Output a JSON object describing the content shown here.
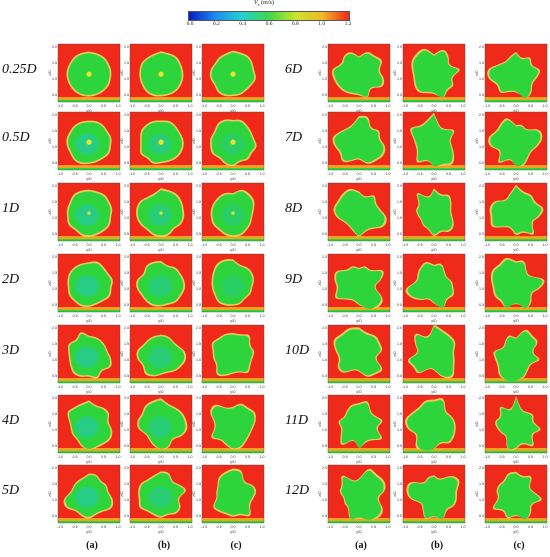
{
  "colorbar": {
    "title": "V",
    "title_sub": "x",
    "title_unit": " (m/s)",
    "ticks": [
      "0.0",
      "0.2",
      "0.4",
      "0.6",
      "0.8",
      "1.0",
      "1.2"
    ],
    "colors": [
      "#0a18c8",
      "#1c8ef0",
      "#26d0d0",
      "#3cd84a",
      "#c8e62a",
      "#f2b82a",
      "#f02818"
    ]
  },
  "rows_left": [
    "0.25D",
    "0.5D",
    "1D",
    "2D",
    "3D",
    "4D",
    "5D"
  ],
  "rows_right": [
    "6D",
    "7D",
    "8D",
    "9D",
    "10D",
    "11D",
    "12D"
  ],
  "columns": [
    "(a)",
    "(b)",
    "(c)"
  ],
  "panel_axes": {
    "xlabel": "y/D",
    "ylabel": "z/D",
    "xticks": [
      "-1.0",
      "-0.5",
      "0.0",
      "0.5",
      "1.0"
    ],
    "yticks": [
      "0.5",
      "1.0",
      "1.5",
      "2.0"
    ]
  },
  "field_colors": {
    "freestream": "#f02a1a",
    "wake": "#2ed43c",
    "deficit_core": "#22c6c0",
    "hub": "#f0e030",
    "ring": "#e0e060"
  }
}
